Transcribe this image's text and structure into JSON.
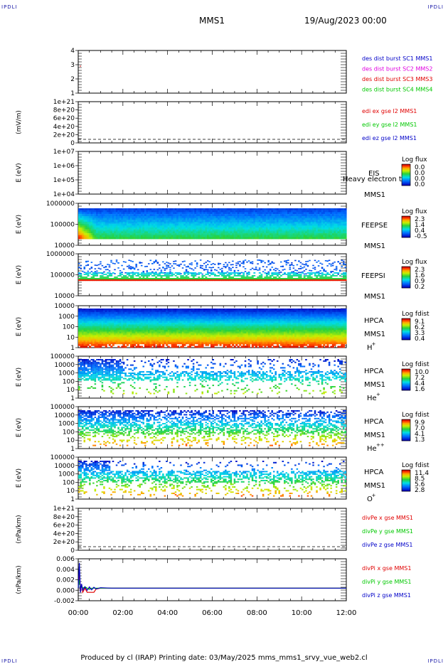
{
  "corners": {
    "tl": "IPDLI",
    "tr": "IPDLI",
    "bl": "IPDLI",
    "br": "IPDLI"
  },
  "header": {
    "spacecraft": "MMS1",
    "date": "19/Aug/2023 00:00"
  },
  "footer": {
    "text": "Produced by cl (IRAP)   Printing date: 03/May/2025   mms_mms1_srvy_vue_web2.cl"
  },
  "time_axis": {
    "ticks": [
      "00:00",
      "02:00",
      "04:00",
      "06:00",
      "08:00",
      "10:00",
      "12:00"
    ]
  },
  "colors": {
    "red": "#e00000",
    "magenta": "#e000e0",
    "green": "#00c800",
    "blue": "#0000c8",
    "black": "#000000"
  },
  "chart_data": [
    {
      "type": "line",
      "id": "des",
      "ylim": [
        0.5,
        4.5
      ],
      "yticks": [
        "1",
        "2",
        "3",
        "4"
      ],
      "ylabel": "",
      "series": [
        {
          "name": "des dist burst SC1 MMS1",
          "color": "#0000c8"
        },
        {
          "name": "des dist burst SC2 MMS2",
          "color": "#e000e0"
        },
        {
          "name": "des dist burst SC3 MMS3",
          "color": "#e00000"
        },
        {
          "name": "des dist burst SC4 MMS4",
          "color": "#00c800"
        }
      ]
    },
    {
      "type": "line",
      "id": "edi",
      "ylim": [
        0,
        1e+21
      ],
      "yticks": [
        "0",
        "2e+20",
        "4e+20",
        "6e+20",
        "8e+20",
        "1e+21"
      ],
      "ylabel": "(mV/m)",
      "series": [
        {
          "name": "edi ex gse l2 MMS1",
          "color": "#e00000",
          "values": [
            0,
            0
          ]
        },
        {
          "name": "edi ey gse l2 MMS1",
          "color": "#00c800",
          "values": [
            0,
            0
          ]
        },
        {
          "name": "edi ez gse l2 MMS1",
          "color": "#0000c8",
          "values": [
            0,
            0
          ]
        }
      ]
    },
    {
      "type": "heatmap",
      "id": "eis",
      "ylabel": "E (eV)",
      "yticks": [
        "1e+04",
        "1e+05",
        "1e+06",
        "1e+07"
      ],
      "labels": [
        "EIS",
        "MMS1"
      ],
      "overlay": "Heavy electron t",
      "colorbar": {
        "title": "Log flux",
        "ticks": [
          "0.0",
          "0.0",
          "0.0",
          "0.0"
        ]
      }
    },
    {
      "type": "heatmap",
      "id": "feepse",
      "ylabel": "E (eV)",
      "yticks": [
        "10000",
        "100000",
        "1000000"
      ],
      "labels": [
        "FEEPSE",
        "MMS1"
      ],
      "colorbar": {
        "title": "Log flux",
        "ticks": [
          "2.3",
          "1.4",
          "0.4",
          "-0.5"
        ]
      }
    },
    {
      "type": "heatmap",
      "id": "feepsi",
      "ylabel": "E (eV)",
      "yticks": [
        "10000",
        "100000",
        "1000000"
      ],
      "labels": [
        "FEEPSI",
        "MMS1"
      ],
      "colorbar": {
        "title": "Log flux",
        "ticks": [
          "2.3",
          "1.6",
          "0.9",
          "0.2"
        ]
      }
    },
    {
      "type": "heatmap",
      "id": "hpca_h",
      "ylabel": "E (eV)",
      "yticks": [
        "1",
        "10",
        "100",
        "1000",
        "10000"
      ],
      "labels": [
        "HPCA",
        "MMS1",
        "H",
        "+"
      ],
      "colorbar": {
        "title": "Log fdist",
        "ticks": [
          "9.1",
          "6.2",
          "3.3",
          "0.4"
        ]
      }
    },
    {
      "type": "heatmap",
      "id": "hpca_he",
      "ylabel": "E (eV)",
      "yticks": [
        "1",
        "10",
        "100",
        "1000",
        "10000",
        "100000"
      ],
      "labels": [
        "HPCA",
        "MMS1",
        "He",
        "+"
      ],
      "colorbar": {
        "title": "Log fdist",
        "ticks": [
          "10.0",
          "7.2",
          "4.4",
          "1.6"
        ]
      }
    },
    {
      "type": "heatmap",
      "id": "hpca_hepp",
      "ylabel": "E (eV)",
      "yticks": [
        "1",
        "10",
        "100",
        "1000",
        "10000",
        "100000"
      ],
      "labels": [
        "HPCA",
        "MMS1",
        "He",
        "++"
      ],
      "colorbar": {
        "title": "Log fdist",
        "ticks": [
          "9.9",
          "7.0",
          "4.1",
          "1.3"
        ]
      }
    },
    {
      "type": "heatmap",
      "id": "hpca_o",
      "ylabel": "E (eV)",
      "yticks": [
        "1",
        "10",
        "100",
        "1000",
        "10000",
        "100000"
      ],
      "labels": [
        "HPCA",
        "MMS1",
        "O",
        "+"
      ],
      "colorbar": {
        "title": "Log fdist",
        "ticks": [
          "11.4",
          "8.5",
          "5.6",
          "2.8"
        ]
      }
    },
    {
      "type": "line",
      "id": "divpe",
      "ylim": [
        0,
        1e+21
      ],
      "yticks": [
        "0",
        "2e+20",
        "4e+20",
        "6e+20",
        "8e+20",
        "1e+21"
      ],
      "ylabel": "(nPa/km)",
      "series": [
        {
          "name": "divPe x gse MMS1",
          "color": "#e00000",
          "values": [
            0,
            0
          ]
        },
        {
          "name": "divPe y gse MMS1",
          "color": "#00c800",
          "values": [
            0,
            0
          ]
        },
        {
          "name": "divPe z gse MMS1",
          "color": "#0000c8",
          "values": [
            0,
            0
          ]
        }
      ]
    },
    {
      "type": "line",
      "id": "divpi",
      "ylim": [
        -0.003,
        0.007
      ],
      "yticks": [
        "-0.002",
        "0.000",
        "0.002",
        "0.004",
        "0.006"
      ],
      "ylabel": "(nPa/km)",
      "x": [
        0,
        0.05,
        0.1,
        0.15,
        0.2,
        0.3,
        0.4,
        0.5,
        0.6,
        0.7,
        0.8,
        1.0,
        1.5,
        2,
        3,
        4,
        6,
        8,
        10,
        12
      ],
      "series": [
        {
          "name": "divPi x gse MMS1",
          "color": "#e00000",
          "values": [
            0,
            0.004,
            -0.001,
            0.001,
            -0.001,
            0.0,
            -0.001,
            -0.001,
            -0.001,
            -0.001,
            -0.0002,
            0,
            0,
            0,
            0,
            0,
            0,
            0,
            0,
            0
          ]
        },
        {
          "name": "divPi y gse MMS1",
          "color": "#00c800",
          "values": [
            0,
            0.002,
            0,
            0.0005,
            0,
            0.0003,
            0,
            -0.0003,
            0,
            0,
            0,
            0,
            0,
            0,
            0,
            0,
            0,
            0,
            0,
            0
          ]
        },
        {
          "name": "divPi z gse MMS1",
          "color": "#0000c8",
          "values": [
            0,
            0.006,
            -0.001,
            0.001,
            -0.0005,
            0.0003,
            -0.0005,
            0.0003,
            -0.0004,
            0.0002,
            -0.0002,
            0.0001,
            0,
            0,
            0,
            0,
            0,
            0,
            0,
            0
          ]
        }
      ]
    }
  ]
}
